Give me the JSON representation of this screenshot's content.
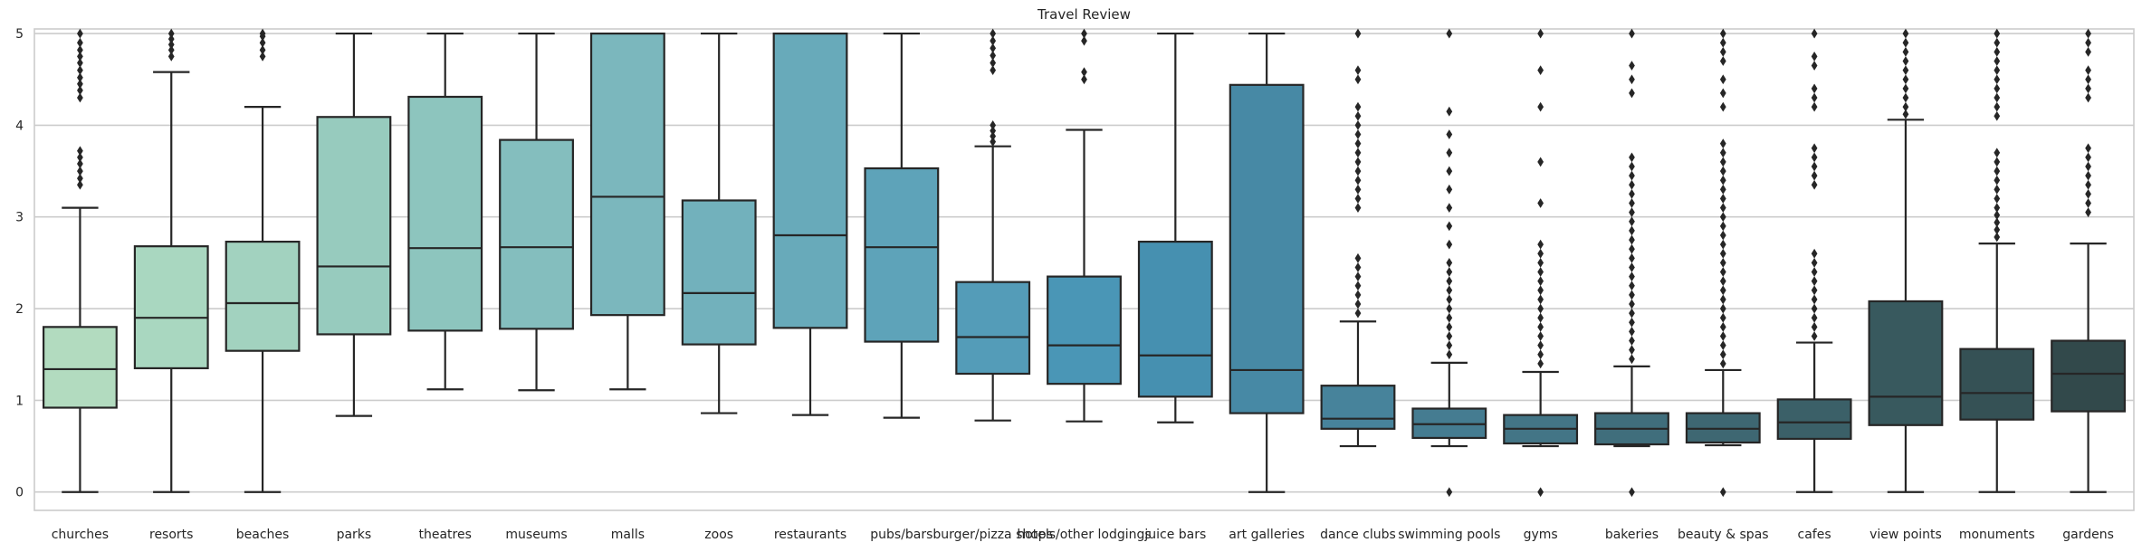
{
  "chart_data": {
    "type": "box",
    "title": "Travel Review",
    "xlabel": "",
    "ylabel": "",
    "ylim": [
      -0.2,
      5.05
    ],
    "yticks": [
      0,
      1,
      2,
      3,
      4,
      5
    ],
    "ytick_labels": [
      "0",
      "1",
      "2",
      "3",
      "4",
      "5"
    ],
    "grid": "horizontal",
    "categories": [
      "churches",
      "resorts",
      "beaches",
      "parks",
      "theatres",
      "museums",
      "malls",
      "zoos",
      "restaurants",
      "pubs/bars",
      "burger/pizza shops",
      "hotels/other lodgings",
      "juice bars",
      "art galleries",
      "dance clubs",
      "swimming pools",
      "gyms",
      "bakeries",
      "beauty & spas",
      "cafes",
      "view points",
      "monuments",
      "gardens"
    ],
    "colors": [
      "#b2dbbf",
      "#a9d7c0",
      "#a2d2bf",
      "#97cbbe",
      "#8dc5be",
      "#84bebe",
      "#7bb7bd",
      "#72b1bc",
      "#68aaba",
      "#5ea3b9",
      "#549cb8",
      "#4a96b6",
      "#4690b0",
      "#4789a5",
      "#47839b",
      "#457c91",
      "#437586",
      "#406e7c",
      "#3e6772",
      "#3b6068",
      "#38595e",
      "#355155",
      "#32494b"
    ],
    "boxes": [
      {
        "q1": 0.92,
        "median": 1.34,
        "q3": 1.8,
        "whisker_low": 0.0,
        "whisker_high": 3.1,
        "outliers": [
          3.35,
          3.42,
          3.5,
          3.58,
          3.65,
          3.72,
          4.3,
          4.38,
          4.45,
          4.52,
          4.6,
          4.68,
          4.75,
          4.82,
          4.9,
          5.0
        ]
      },
      {
        "q1": 1.35,
        "median": 1.9,
        "q3": 2.68,
        "whisker_low": 0.0,
        "whisker_high": 4.58,
        "outliers": [
          4.75,
          4.82,
          4.88,
          4.94,
          5.0
        ]
      },
      {
        "q1": 1.54,
        "median": 2.06,
        "q3": 2.73,
        "whisker_low": 0.0,
        "whisker_high": 4.2,
        "outliers": [
          4.75,
          4.82,
          4.9,
          4.97,
          5.0
        ]
      },
      {
        "q1": 1.72,
        "median": 2.46,
        "q3": 4.09,
        "whisker_low": 0.83,
        "whisker_high": 5.0,
        "outliers": []
      },
      {
        "q1": 1.76,
        "median": 2.66,
        "q3": 4.31,
        "whisker_low": 1.12,
        "whisker_high": 5.0,
        "outliers": []
      },
      {
        "q1": 1.78,
        "median": 2.67,
        "q3": 3.84,
        "whisker_low": 1.11,
        "whisker_high": 5.0,
        "outliers": []
      },
      {
        "q1": 1.93,
        "median": 3.22,
        "q3": 5.0,
        "whisker_low": 1.12,
        "whisker_high": 5.0,
        "outliers": []
      },
      {
        "q1": 1.61,
        "median": 2.17,
        "q3": 3.18,
        "whisker_low": 0.86,
        "whisker_high": 5.0,
        "outliers": []
      },
      {
        "q1": 1.79,
        "median": 2.8,
        "q3": 5.0,
        "whisker_low": 0.84,
        "whisker_high": 5.0,
        "outliers": []
      },
      {
        "q1": 1.64,
        "median": 2.67,
        "q3": 3.53,
        "whisker_low": 0.81,
        "whisker_high": 5.0,
        "outliers": []
      },
      {
        "q1": 1.29,
        "median": 1.69,
        "q3": 2.29,
        "whisker_low": 0.78,
        "whisker_high": 3.77,
        "outliers": [
          3.82,
          3.88,
          3.94,
          4.0,
          4.6,
          4.68,
          4.76,
          4.84,
          4.92,
          5.0
        ]
      },
      {
        "q1": 1.18,
        "median": 1.6,
        "q3": 2.35,
        "whisker_low": 0.77,
        "whisker_high": 3.95,
        "outliers": [
          4.5,
          4.58,
          4.92,
          5.0
        ]
      },
      {
        "q1": 1.04,
        "median": 1.49,
        "q3": 2.73,
        "whisker_low": 0.76,
        "whisker_high": 5.0,
        "outliers": []
      },
      {
        "q1": 0.86,
        "median": 1.33,
        "q3": 4.44,
        "whisker_low": 0.0,
        "whisker_high": 5.0,
        "outliers": []
      },
      {
        "q1": 0.69,
        "median": 0.8,
        "q3": 1.16,
        "whisker_low": 0.5,
        "whisker_high": 1.86,
        "outliers": [
          1.95,
          2.05,
          2.15,
          2.25,
          2.35,
          2.45,
          2.55,
          3.1,
          3.2,
          3.3,
          3.4,
          3.5,
          3.6,
          3.7,
          3.8,
          3.9,
          4.0,
          4.1,
          4.2,
          4.5,
          4.6,
          5.0
        ]
      },
      {
        "q1": 0.59,
        "median": 0.74,
        "q3": 0.91,
        "whisker_low": 0.5,
        "whisker_high": 1.41,
        "outliers": [
          0.0,
          1.5,
          1.6,
          1.7,
          1.8,
          1.9,
          2.0,
          2.1,
          2.2,
          2.3,
          2.4,
          2.5,
          2.7,
          2.9,
          3.1,
          3.3,
          3.5,
          3.7,
          3.9,
          4.15,
          5.0
        ]
      },
      {
        "q1": 0.53,
        "median": 0.69,
        "q3": 0.84,
        "whisker_low": 0.5,
        "whisker_high": 1.31,
        "outliers": [
          0.0,
          1.4,
          1.5,
          1.6,
          1.7,
          1.8,
          1.9,
          2.0,
          2.1,
          2.2,
          2.3,
          2.4,
          2.5,
          2.6,
          2.7,
          3.15,
          3.6,
          4.2,
          4.6,
          5.0
        ]
      },
      {
        "q1": 0.52,
        "median": 0.69,
        "q3": 0.86,
        "whisker_low": 0.5,
        "whisker_high": 1.37,
        "outliers": [
          0.0,
          1.45,
          1.55,
          1.65,
          1.75,
          1.85,
          1.95,
          2.05,
          2.15,
          2.25,
          2.35,
          2.45,
          2.55,
          2.65,
          2.75,
          2.85,
          2.95,
          3.05,
          3.15,
          3.25,
          3.35,
          3.45,
          3.55,
          3.65,
          4.35,
          4.5,
          4.65,
          5.0
        ]
      },
      {
        "q1": 0.54,
        "median": 0.69,
        "q3": 0.86,
        "whisker_low": 0.51,
        "whisker_high": 1.33,
        "outliers": [
          0.0,
          1.4,
          1.5,
          1.6,
          1.7,
          1.8,
          1.9,
          2.0,
          2.1,
          2.2,
          2.3,
          2.4,
          2.5,
          2.6,
          2.7,
          2.8,
          2.9,
          3.0,
          3.1,
          3.2,
          3.3,
          3.4,
          3.5,
          3.6,
          3.7,
          3.8,
          4.2,
          4.35,
          4.5,
          4.7,
          4.8,
          4.9,
          5.0
        ]
      },
      {
        "q1": 0.58,
        "median": 0.76,
        "q3": 1.01,
        "whisker_low": 0.0,
        "whisker_high": 1.63,
        "outliers": [
          1.7,
          1.8,
          1.9,
          2.0,
          2.1,
          2.2,
          2.3,
          2.4,
          2.5,
          2.6,
          3.35,
          3.45,
          3.55,
          3.65,
          3.75,
          4.2,
          4.3,
          4.4,
          4.65,
          4.75,
          5.0
        ]
      },
      {
        "q1": 0.73,
        "median": 1.04,
        "q3": 2.08,
        "whisker_low": 0.0,
        "whisker_high": 4.06,
        "outliers": [
          4.12,
          4.2,
          4.3,
          4.4,
          4.5,
          4.6,
          4.7,
          4.8,
          4.9,
          5.0
        ]
      },
      {
        "q1": 0.79,
        "median": 1.08,
        "q3": 1.56,
        "whisker_low": 0.0,
        "whisker_high": 2.71,
        "outliers": [
          2.78,
          2.86,
          2.94,
          3.02,
          3.1,
          3.2,
          3.3,
          3.4,
          3.5,
          3.6,
          3.7,
          4.1,
          4.2,
          4.3,
          4.4,
          4.5,
          4.6,
          4.7,
          4.8,
          4.9,
          5.0
        ]
      },
      {
        "q1": 0.88,
        "median": 1.29,
        "q3": 1.65,
        "whisker_low": 0.0,
        "whisker_high": 2.71,
        "outliers": [
          3.05,
          3.15,
          3.25,
          3.35,
          3.45,
          3.55,
          3.65,
          3.75,
          4.3,
          4.4,
          4.5,
          4.6,
          4.8,
          4.9,
          5.0
        ]
      }
    ]
  }
}
